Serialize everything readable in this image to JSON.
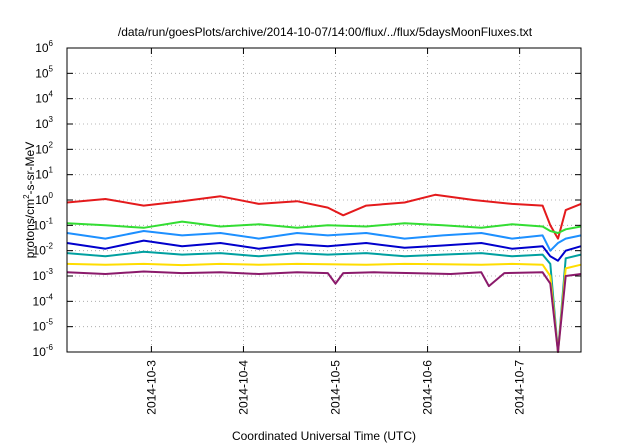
{
  "chart_data": {
    "type": "line",
    "title": "/data/run/goesPlots/archive/2014-10-07/14:00/flux/../flux/5daysMoonFluxes.txt",
    "xlabel": "Coordinated Universal Time (UTC)",
    "ylabel": {
      "pre": "protons/cm",
      "sup": "2",
      "post": "-s-sr-MeV"
    },
    "y_scale": "log",
    "ylim": [
      1e-06,
      1000000.0
    ],
    "y_ticks": [
      {
        "base": "10",
        "exp": "-6"
      },
      {
        "base": "10",
        "exp": "-5"
      },
      {
        "base": "10",
        "exp": "-4"
      },
      {
        "base": "10",
        "exp": "-3"
      },
      {
        "base": "10",
        "exp": "-2"
      },
      {
        "base": "10",
        "exp": "-1"
      },
      {
        "base": "10",
        "exp": "0"
      },
      {
        "base": "10",
        "exp": "1"
      },
      {
        "base": "10",
        "exp": "2"
      },
      {
        "base": "10",
        "exp": "3"
      },
      {
        "base": "10",
        "exp": "4"
      },
      {
        "base": "10",
        "exp": "5"
      },
      {
        "base": "10",
        "exp": "6"
      }
    ],
    "xlim": [
      "2014-10-02T02:00",
      "2014-10-07T16:00"
    ],
    "x_ticks": [
      "2014-10-3",
      "2014-10-4",
      "2014-10-5",
      "2014-10-6",
      "2014-10-7"
    ],
    "grid": true,
    "legend": "none",
    "series": [
      {
        "color": "#e41a1c",
        "x": [
          "2014-10-02T02:00",
          "2014-10-02T12:00",
          "2014-10-02T22:00",
          "2014-10-03T08:00",
          "2014-10-03T18:00",
          "2014-10-04T04:00",
          "2014-10-04T14:00",
          "2014-10-04T22:00",
          "2014-10-05T02:00",
          "2014-10-05T08:00",
          "2014-10-05T18:00",
          "2014-10-06T02:00",
          "2014-10-06T12:00",
          "2014-10-06T22:00",
          "2014-10-07T06:00",
          "2014-10-07T08:00",
          "2014-10-07T10:00",
          "2014-10-07T12:00",
          "2014-10-07T16:00"
        ],
        "y": [
          0.8,
          1.1,
          0.6,
          0.9,
          1.4,
          0.7,
          0.9,
          0.5,
          0.25,
          0.6,
          0.8,
          1.6,
          1.0,
          0.7,
          0.6,
          0.1,
          0.03,
          0.4,
          0.7
        ]
      },
      {
        "color": "#33dd33",
        "x": [
          "2014-10-02T02:00",
          "2014-10-02T12:00",
          "2014-10-02T22:00",
          "2014-10-03T08:00",
          "2014-10-03T18:00",
          "2014-10-04T04:00",
          "2014-10-04T14:00",
          "2014-10-04T22:00",
          "2014-10-05T08:00",
          "2014-10-05T18:00",
          "2014-10-06T04:00",
          "2014-10-06T14:00",
          "2014-10-06T22:00",
          "2014-10-07T06:00",
          "2014-10-07T08:00",
          "2014-10-07T10:00",
          "2014-10-07T12:00",
          "2014-10-07T16:00"
        ],
        "y": [
          0.12,
          0.1,
          0.08,
          0.14,
          0.09,
          0.11,
          0.08,
          0.1,
          0.09,
          0.12,
          0.1,
          0.08,
          0.11,
          0.09,
          0.06,
          0.05,
          0.07,
          0.09
        ]
      },
      {
        "color": "#1e90ff",
        "x": [
          "2014-10-02T02:00",
          "2014-10-02T12:00",
          "2014-10-02T22:00",
          "2014-10-03T08:00",
          "2014-10-03T18:00",
          "2014-10-04T04:00",
          "2014-10-04T14:00",
          "2014-10-04T22:00",
          "2014-10-05T08:00",
          "2014-10-05T18:00",
          "2014-10-06T04:00",
          "2014-10-06T14:00",
          "2014-10-06T22:00",
          "2014-10-07T06:00",
          "2014-10-07T08:00",
          "2014-10-07T10:00",
          "2014-10-07T12:00",
          "2014-10-07T16:00"
        ],
        "y": [
          0.05,
          0.03,
          0.06,
          0.04,
          0.05,
          0.03,
          0.05,
          0.04,
          0.05,
          0.03,
          0.04,
          0.05,
          0.03,
          0.04,
          0.01,
          0.02,
          0.03,
          0.04
        ]
      },
      {
        "color": "#0000cc",
        "x": [
          "2014-10-02T02:00",
          "2014-10-02T12:00",
          "2014-10-02T22:00",
          "2014-10-03T08:00",
          "2014-10-03T18:00",
          "2014-10-04T04:00",
          "2014-10-04T14:00",
          "2014-10-04T22:00",
          "2014-10-05T08:00",
          "2014-10-05T18:00",
          "2014-10-06T04:00",
          "2014-10-06T14:00",
          "2014-10-06T22:00",
          "2014-10-07T06:00",
          "2014-10-07T08:00",
          "2014-10-07T10:00",
          "2014-10-07T12:00",
          "2014-10-07T16:00"
        ],
        "y": [
          0.02,
          0.012,
          0.025,
          0.015,
          0.02,
          0.012,
          0.018,
          0.015,
          0.02,
          0.013,
          0.016,
          0.02,
          0.012,
          0.015,
          0.006,
          0.004,
          0.01,
          0.015
        ]
      },
      {
        "color": "#00a0a0",
        "x": [
          "2014-10-02T02:00",
          "2014-10-02T12:00",
          "2014-10-02T22:00",
          "2014-10-03T08:00",
          "2014-10-03T18:00",
          "2014-10-04T04:00",
          "2014-10-04T14:00",
          "2014-10-04T22:00",
          "2014-10-05T08:00",
          "2014-10-05T18:00",
          "2014-10-06T04:00",
          "2014-10-06T14:00",
          "2014-10-06T22:00",
          "2014-10-07T06:00",
          "2014-10-07T08:00",
          "2014-10-07T10:00",
          "2014-10-07T12:00",
          "2014-10-07T16:00"
        ],
        "y": [
          0.008,
          0.006,
          0.009,
          0.007,
          0.008,
          0.006,
          0.008,
          0.007,
          0.008,
          0.006,
          0.007,
          0.008,
          0.006,
          0.007,
          0.003,
          1e-06,
          0.005,
          0.007
        ]
      },
      {
        "color": "#ffdd00",
        "x": [
          "2014-10-02T02:00",
          "2014-10-02T12:00",
          "2014-10-02T22:00",
          "2014-10-03T08:00",
          "2014-10-03T18:00",
          "2014-10-04T04:00",
          "2014-10-04T14:00",
          "2014-10-04T22:00",
          "2014-10-05T08:00",
          "2014-10-05T18:00",
          "2014-10-06T04:00",
          "2014-10-06T14:00",
          "2014-10-06T22:00",
          "2014-10-07T06:00",
          "2014-10-07T08:00",
          "2014-10-07T10:00",
          "2014-10-07T12:00",
          "2014-10-07T16:00"
        ],
        "y": [
          0.003,
          0.0028,
          0.003,
          0.0027,
          0.003,
          0.0028,
          0.003,
          0.0029,
          0.0028,
          0.003,
          0.0029,
          0.0028,
          0.003,
          0.0028,
          0.001,
          1e-06,
          0.002,
          0.0028
        ]
      },
      {
        "color": "#8b1a6b",
        "x": [
          "2014-10-02T02:00",
          "2014-10-02T12:00",
          "2014-10-02T22:00",
          "2014-10-03T08:00",
          "2014-10-03T18:00",
          "2014-10-04T04:00",
          "2014-10-04T14:00",
          "2014-10-04T22:00",
          "2014-10-05T00:00",
          "2014-10-05T02:00",
          "2014-10-05T10:00",
          "2014-10-05T20:00",
          "2014-10-06T06:00",
          "2014-10-06T14:00",
          "2014-10-06T16:00",
          "2014-10-06T20:00",
          "2014-10-07T06:00",
          "2014-10-07T08:00",
          "2014-10-07T10:00",
          "2014-10-07T12:00",
          "2014-10-07T16:00"
        ],
        "y": [
          0.0014,
          0.0012,
          0.0015,
          0.0013,
          0.0014,
          0.0012,
          0.0014,
          0.0013,
          0.0005,
          0.0013,
          0.0014,
          0.0013,
          0.0012,
          0.0014,
          0.0004,
          0.0013,
          0.0014,
          0.0005,
          1e-06,
          0.001,
          0.0012
        ]
      }
    ]
  }
}
